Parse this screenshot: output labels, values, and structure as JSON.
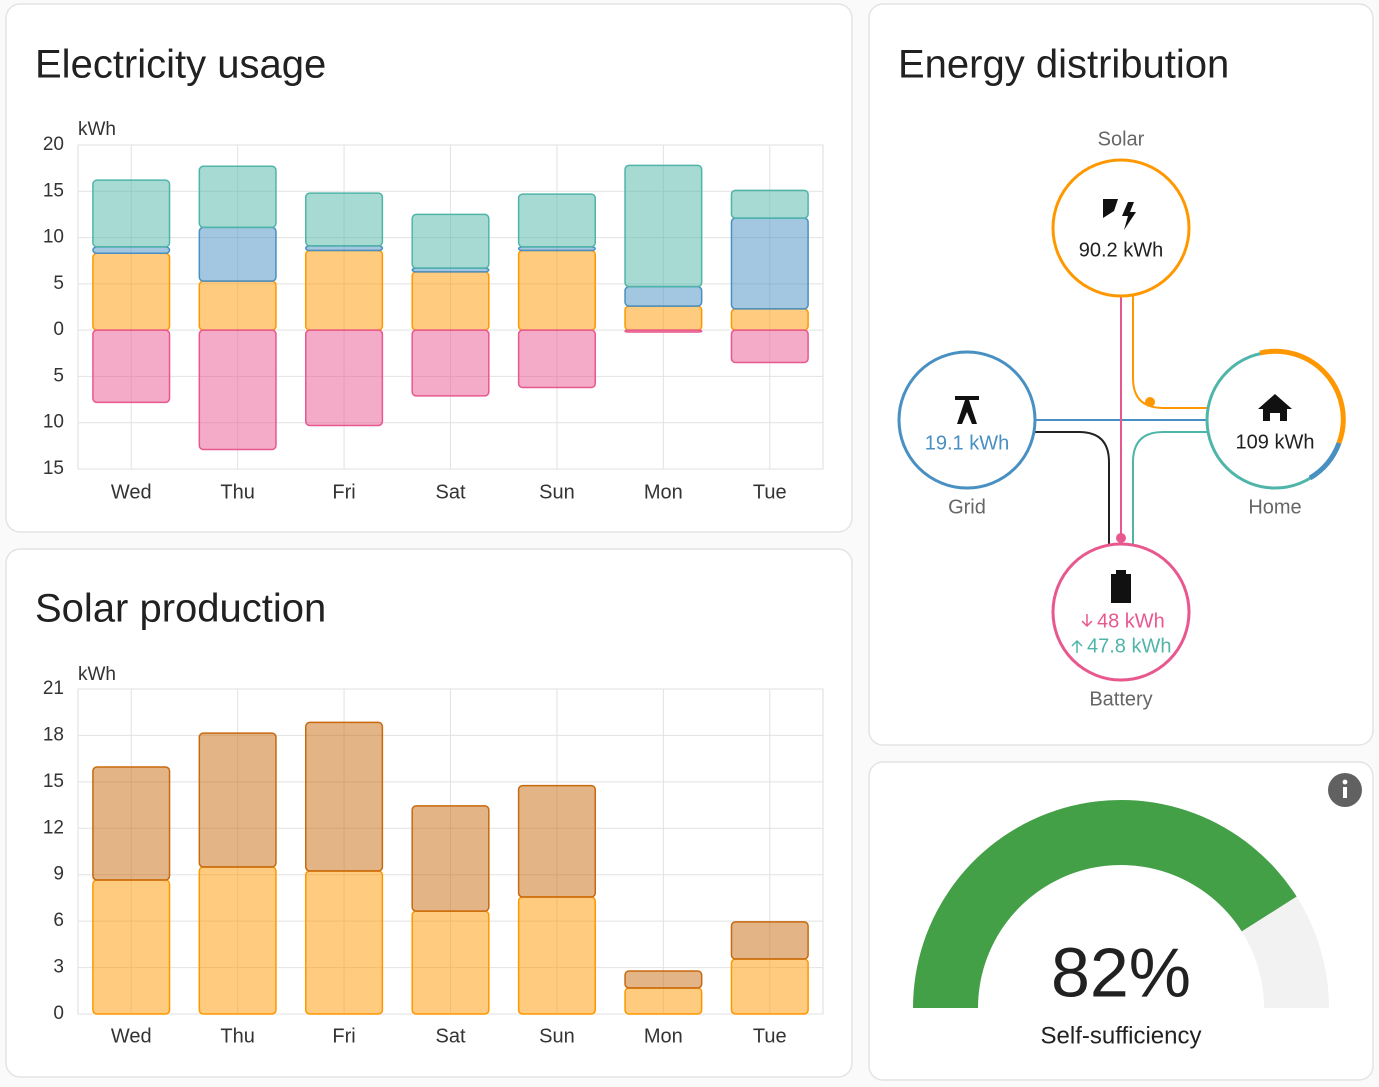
{
  "chart_data": [
    {
      "type": "bar",
      "stacked": true,
      "title": "Electricity usage",
      "y_label": "kWh",
      "categories": [
        "Wed",
        "Thu",
        "Fri",
        "Sat",
        "Sun",
        "Mon",
        "Tue"
      ],
      "series": [
        {
          "color": "#ff9800",
          "values": [
            8.3,
            5.3,
            8.6,
            6.3,
            8.6,
            2.6,
            2.3
          ]
        },
        {
          "color": "#488fc2",
          "values": [
            0.7,
            5.8,
            0.5,
            0.4,
            0.4,
            2.1,
            9.8
          ]
        },
        {
          "color": "#4fb5a8",
          "values": [
            7.2,
            6.6,
            5.7,
            5.8,
            5.7,
            13.1,
            3.0
          ]
        },
        {
          "color": "#e8588f",
          "values": [
            -7.8,
            -12.9,
            -10.3,
            -7.1,
            -6.2,
            -0.2,
            -3.5
          ]
        }
      ],
      "ylim": [
        -15,
        20
      ],
      "yticks": [
        {
          "value": -15,
          "label": "15"
        },
        {
          "value": -10,
          "label": "10"
        },
        {
          "value": -5,
          "label": "5"
        },
        0,
        5,
        10,
        15,
        20
      ],
      "grid": true
    },
    {
      "type": "bar",
      "stacked": true,
      "title": "Solar production",
      "y_label": "kWh",
      "categories": [
        "Wed",
        "Thu",
        "Fri",
        "Sat",
        "Sun",
        "Mon",
        "Tue"
      ],
      "series": [
        {
          "color": "#ff9800",
          "values": [
            8.66,
            9.5,
            9.24,
            6.65,
            7.56,
            1.68,
            3.55
          ]
        },
        {
          "color": "#c8690d",
          "values": [
            7.3,
            8.65,
            9.6,
            6.8,
            7.2,
            1.1,
            2.4
          ]
        }
      ],
      "ylim": [
        0,
        21
      ],
      "yticks": [
        0,
        3,
        6,
        9,
        12,
        15,
        18,
        21
      ],
      "grid": true
    },
    {
      "type": "gauge",
      "title": "Self-sufficiency",
      "values": [
        82
      ],
      "value_labels": [
        "82%"
      ],
      "ylim": [
        0,
        100
      ],
      "color": "#43a047"
    }
  ],
  "energy_distribution": {
    "title": "Energy distribution",
    "solar": {
      "label": "Solar",
      "value": "90.2 kWh"
    },
    "grid": {
      "label": "Grid",
      "value": "19.1 kWh"
    },
    "home": {
      "label": "Home",
      "value": "109 kWh"
    },
    "battery": {
      "label": "Battery",
      "value_in": "48 kWh",
      "value_out": "47.8 kWh"
    }
  }
}
